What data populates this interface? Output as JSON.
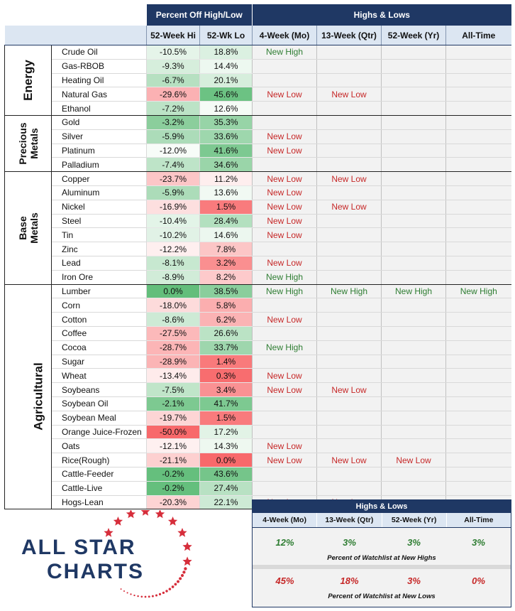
{
  "header": {
    "group1": "Percent Off High/Low",
    "group2": "Highs & Lows",
    "cols": [
      "52-Week Hi",
      "52-Wk Lo",
      "4-Week (Mo)",
      "13-Week (Qtr)",
      "52-Week (Yr)",
      "All-Time"
    ]
  },
  "groups": [
    {
      "label": "Energy",
      "rows": [
        {
          "name": "Crude Oil",
          "hi": "-10.5%",
          "lo": "18.8%",
          "m4": "New High",
          "q13": "",
          "y52": "",
          "at": ""
        },
        {
          "name": "Gas-RBOB",
          "hi": "-9.3%",
          "lo": "14.4%",
          "m4": "",
          "q13": "",
          "y52": "",
          "at": ""
        },
        {
          "name": "Heating Oil",
          "hi": "-6.7%",
          "lo": "20.1%",
          "m4": "",
          "q13": "",
          "y52": "",
          "at": ""
        },
        {
          "name": "Natural Gas",
          "hi": "-29.6%",
          "lo": "45.6%",
          "m4": "New Low",
          "q13": "New Low",
          "y52": "",
          "at": ""
        },
        {
          "name": "Ethanol",
          "hi": "-7.2%",
          "lo": "12.6%",
          "m4": "",
          "q13": "",
          "y52": "",
          "at": ""
        }
      ]
    },
    {
      "label": "Precious Metals",
      "rows": [
        {
          "name": "Gold",
          "hi": "-3.2%",
          "lo": "35.3%",
          "m4": "",
          "q13": "",
          "y52": "",
          "at": ""
        },
        {
          "name": "Silver",
          "hi": "-5.9%",
          "lo": "33.6%",
          "m4": "New Low",
          "q13": "",
          "y52": "",
          "at": ""
        },
        {
          "name": "Platinum",
          "hi": "-12.0%",
          "lo": "41.6%",
          "m4": "New Low",
          "q13": "",
          "y52": "",
          "at": ""
        },
        {
          "name": "Palladium",
          "hi": "-7.4%",
          "lo": "34.6%",
          "m4": "",
          "q13": "",
          "y52": "",
          "at": ""
        }
      ]
    },
    {
      "label": "Base Metals",
      "rows": [
        {
          "name": "Copper",
          "hi": "-23.7%",
          "lo": "11.2%",
          "m4": "New Low",
          "q13": "New Low",
          "y52": "",
          "at": ""
        },
        {
          "name": "Aluminum",
          "hi": "-5.9%",
          "lo": "13.6%",
          "m4": "New Low",
          "q13": "",
          "y52": "",
          "at": ""
        },
        {
          "name": "Nickel",
          "hi": "-16.9%",
          "lo": "1.5%",
          "m4": "New Low",
          "q13": "New Low",
          "y52": "",
          "at": ""
        },
        {
          "name": "Steel",
          "hi": "-10.4%",
          "lo": "28.4%",
          "m4": "New Low",
          "q13": "",
          "y52": "",
          "at": ""
        },
        {
          "name": "Tin",
          "hi": "-10.2%",
          "lo": "14.6%",
          "m4": "New Low",
          "q13": "",
          "y52": "",
          "at": ""
        },
        {
          "name": "Zinc",
          "hi": "-12.2%",
          "lo": "7.8%",
          "m4": "",
          "q13": "",
          "y52": "",
          "at": ""
        },
        {
          "name": "Lead",
          "hi": "-8.1%",
          "lo": "3.2%",
          "m4": "New Low",
          "q13": "",
          "y52": "",
          "at": ""
        },
        {
          "name": "Iron Ore",
          "hi": "-8.9%",
          "lo": "8.2%",
          "m4": "New High",
          "q13": "",
          "y52": "",
          "at": ""
        }
      ]
    },
    {
      "label": "Agricultural",
      "rows": [
        {
          "name": "Lumber",
          "hi": "0.0%",
          "lo": "38.5%",
          "m4": "New High",
          "q13": "New High",
          "y52": "New High",
          "at": "New High"
        },
        {
          "name": "Corn",
          "hi": "-18.0%",
          "lo": "5.8%",
          "m4": "",
          "q13": "",
          "y52": "",
          "at": ""
        },
        {
          "name": "Cotton",
          "hi": "-8.6%",
          "lo": "6.2%",
          "m4": "New Low",
          "q13": "",
          "y52": "",
          "at": ""
        },
        {
          "name": "Coffee",
          "hi": "-27.5%",
          "lo": "26.6%",
          "m4": "",
          "q13": "",
          "y52": "",
          "at": ""
        },
        {
          "name": "Cocoa",
          "hi": "-28.7%",
          "lo": "33.7%",
          "m4": "New High",
          "q13": "",
          "y52": "",
          "at": ""
        },
        {
          "name": "Sugar",
          "hi": "-28.9%",
          "lo": "1.4%",
          "m4": "",
          "q13": "",
          "y52": "",
          "at": ""
        },
        {
          "name": "Wheat",
          "hi": "-13.4%",
          "lo": "0.3%",
          "m4": "New Low",
          "q13": "",
          "y52": "",
          "at": ""
        },
        {
          "name": "Soybeans",
          "hi": "-7.5%",
          "lo": "3.4%",
          "m4": "New Low",
          "q13": "New Low",
          "y52": "",
          "at": ""
        },
        {
          "name": "Soybean Oil",
          "hi": "-2.1%",
          "lo": "41.7%",
          "m4": "",
          "q13": "",
          "y52": "",
          "at": ""
        },
        {
          "name": "Soybean Meal",
          "hi": "-19.7%",
          "lo": "1.5%",
          "m4": "",
          "q13": "",
          "y52": "",
          "at": ""
        },
        {
          "name": "Orange Juice-Frozen",
          "hi": "-50.0%",
          "lo": "17.2%",
          "m4": "",
          "q13": "",
          "y52": "",
          "at": ""
        },
        {
          "name": "Oats",
          "hi": "-12.1%",
          "lo": "14.3%",
          "m4": "New Low",
          "q13": "",
          "y52": "",
          "at": ""
        },
        {
          "name": "Rice(Rough)",
          "hi": "-21.1%",
          "lo": "0.0%",
          "m4": "New Low",
          "q13": "New Low",
          "y52": "New Low",
          "at": ""
        },
        {
          "name": "Cattle-Feeder",
          "hi": "-0.2%",
          "lo": "43.6%",
          "m4": "",
          "q13": "",
          "y52": "",
          "at": ""
        },
        {
          "name": "Cattle-Live",
          "hi": "-0.2%",
          "lo": "27.4%",
          "m4": "",
          "q13": "",
          "y52": "",
          "at": ""
        },
        {
          "name": "Hogs-Lean",
          "hi": "-20.3%",
          "lo": "22.1%",
          "m4": "New Low",
          "q13": "New Low",
          "y52": "",
          "at": ""
        }
      ]
    }
  ],
  "colors": {
    "header_bg": "#1f3864",
    "subheader_bg": "#dce6f2",
    "green": "#2e7d32",
    "red": "#c62828"
  },
  "logo": {
    "line1": "ALL STAR",
    "line2": "CHARTS"
  },
  "summary": {
    "title": "Highs & Lows",
    "cols": [
      "4-Week (Mo)",
      "13-Week (Qtr)",
      "52-Week (Yr)",
      "All-Time"
    ],
    "highs": [
      "12%",
      "3%",
      "3%",
      "3%"
    ],
    "highs_caption": "Percent of Watchlist at New Highs",
    "lows": [
      "45%",
      "18%",
      "3%",
      "0%"
    ],
    "lows_caption": "Percent of Watchlist at New Lows"
  }
}
